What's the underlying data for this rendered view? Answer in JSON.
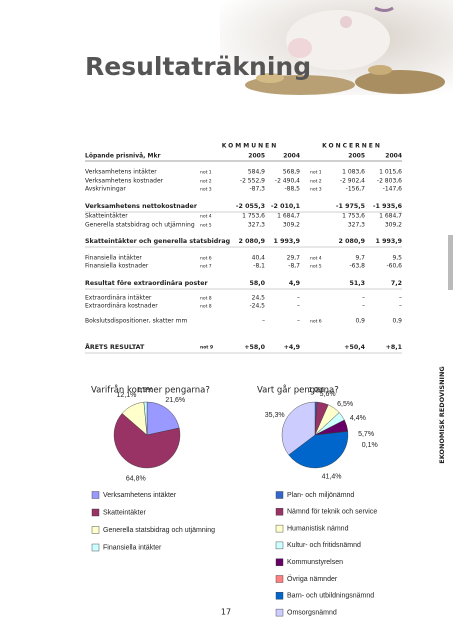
{
  "header": {
    "title": "Resultaträkning"
  },
  "table": {
    "group_headers": [
      "KOMMUNEN",
      "KONCERNEN"
    ],
    "columns": [
      "Löpande prisnivå, Mkr",
      "2005",
      "2004",
      "2005",
      "2004"
    ],
    "rows": [
      {
        "cells": [
          "Verksamhetens intäkter",
          "not 1",
          "584,9",
          "568,9",
          "not 1",
          "1 083,6",
          "1 015,6"
        ],
        "bold": false
      },
      {
        "cells": [
          "Verksamhetens kostnader",
          "not 2",
          "-2 552,9",
          "-2 490,4",
          "not 2",
          "-2 902,4",
          "-2 803,6"
        ],
        "bold": false
      },
      {
        "cells": [
          "Avskrivningar",
          "not 3",
          "-87,3",
          "-88,5",
          "not 3",
          "-156,7",
          "-147,6"
        ],
        "bold": false
      },
      {
        "cells": [
          "Verksamhetens nettokostnader",
          null,
          "-2 055,3",
          "-2 010,1",
          null,
          "-1 975,5",
          "-1 935,6"
        ],
        "bold": true
      },
      {
        "cells": [
          "Skatteintäkter",
          "not 4",
          "1 753,6",
          "1 684,7",
          null,
          "1 753,6",
          "1 684,7"
        ],
        "bold": false
      },
      {
        "cells": [
          "Generella statsbidrag och utjämning",
          "not 5",
          "327,3",
          "309,2",
          null,
          "327,3",
          "309,2"
        ],
        "bold": false
      },
      {
        "cells": [
          "Skatteintäkter och generella statsbidrag",
          null,
          "2 080,9",
          "1 993,9",
          null,
          "2 080,9",
          "1 993,9"
        ],
        "bold": true
      },
      {
        "cells": [
          "Finansiella intäkter",
          "not 6",
          "40,4",
          "29,7",
          "not 4",
          "9,7",
          "9,5"
        ],
        "bold": false
      },
      {
        "cells": [
          "Finansiella kostnader",
          "not 7",
          "-8,1",
          "-8,7",
          "not 5",
          "-63,8",
          "-60,6"
        ],
        "bold": false
      },
      {
        "cells": [
          "Resultat före extraordinära poster",
          null,
          "58,0",
          "4,9",
          null,
          "51,3",
          "7,2"
        ],
        "bold": true
      },
      {
        "cells": [
          "Extraordinära intäkter",
          "not 8",
          "24,5",
          "–",
          null,
          "–",
          "–"
        ],
        "bold": false
      },
      {
        "cells": [
          "Extraordinära kostnader",
          "not 8",
          "-24,5",
          "–",
          null,
          "–",
          "–"
        ],
        "bold": false
      },
      {
        "cells": [
          "Bokslutsdispositioner, skatter mm",
          null,
          "–",
          "–",
          "not 6",
          "0,9",
          "0,9"
        ],
        "bold": false
      },
      {
        "cells": [
          "ÅRETS RESULTAT",
          "not 9",
          "+58,0",
          "+4,9",
          null,
          "+50,4",
          "+8,1"
        ],
        "bold": true
      }
    ]
  },
  "charts": [
    {
      "type": "pie",
      "title": "Varifrån kommer pengarna?",
      "labels": [
        "Verksamhetens intäkter",
        "Skatteintäkter",
        "Generella statsbidrag och utjämning",
        "Finansiella intäkter"
      ],
      "values": [
        21.6,
        64.8,
        12.1,
        1.5
      ],
      "value_labels": [
        "21,6%",
        "64,8%",
        "12,1%",
        "1,5%"
      ],
      "colors": [
        "#9999ff",
        "#993366",
        "#ffffcc",
        "#ccffff"
      ]
    },
    {
      "type": "pie",
      "title": "Vart går pengarna?",
      "labels": [
        "Plan- och miljönämnd",
        "Nämnd för teknik och service",
        "Humanistisk nämnd",
        "Kultur- och fritidsnämnd",
        "Kommunstyrelsen",
        "Övriga nämnder",
        "Barn- och utbildningsnämnd",
        "Omsorgsnämnd"
      ],
      "values": [
        1.0,
        5.6,
        6.5,
        4.4,
        5.7,
        0.1,
        41.4,
        35.3
      ],
      "value_labels": [
        "1,0%",
        "5,6%",
        "6,5%",
        "4,4%",
        "5,7%",
        "0,1%",
        "41,4%",
        "35,3%"
      ],
      "colors": [
        "#3366cc",
        "#993366",
        "#ffffcc",
        "#ccffff",
        "#660066",
        "#ff8080",
        "#0066cc",
        "#ccccff"
      ]
    }
  ],
  "side_label": "EKONOMISK REDOVISNING",
  "page_number": "17"
}
